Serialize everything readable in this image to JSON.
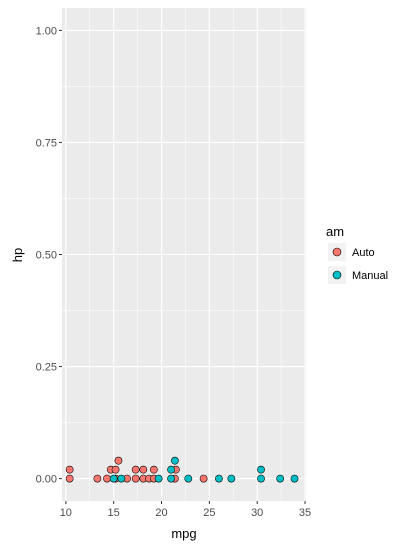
{
  "chart_data": {
    "type": "scatter",
    "xlabel": "mpg",
    "ylabel": "hp",
    "xlim": [
      9.6,
      35.1
    ],
    "ylim": [
      -0.05,
      1.05
    ],
    "xticks": [
      10,
      15,
      20,
      25,
      30,
      35
    ],
    "xtick_labels": [
      "10",
      "15",
      "20",
      "25",
      "30",
      "35"
    ],
    "yticks": [
      0,
      0.25,
      0.5,
      0.75,
      1.0
    ],
    "ytick_labels": [
      "0.00",
      "0.25",
      "0.50",
      "0.75",
      "1.00"
    ],
    "grid": true,
    "legend": {
      "title": "am",
      "placement": "right",
      "entries": [
        "Auto",
        "Manual"
      ]
    },
    "series": [
      {
        "name": "Auto",
        "color": "#F8766D",
        "points": [
          {
            "x": 10.4,
            "y": 0.0
          },
          {
            "x": 10.4,
            "y": 0.02
          },
          {
            "x": 13.3,
            "y": 0.0
          },
          {
            "x": 14.3,
            "y": 0.0
          },
          {
            "x": 14.7,
            "y": 0.02
          },
          {
            "x": 15.2,
            "y": 0.0
          },
          {
            "x": 15.2,
            "y": 0.02
          },
          {
            "x": 15.5,
            "y": 0.04
          },
          {
            "x": 16.4,
            "y": 0.0
          },
          {
            "x": 17.3,
            "y": 0.0
          },
          {
            "x": 17.3,
            "y": 0.02
          },
          {
            "x": 18.1,
            "y": 0.0
          },
          {
            "x": 18.1,
            "y": 0.02
          },
          {
            "x": 18.7,
            "y": 0.0
          },
          {
            "x": 19.2,
            "y": 0.0
          },
          {
            "x": 19.2,
            "y": 0.02
          },
          {
            "x": 21.4,
            "y": 0.0
          },
          {
            "x": 21.5,
            "y": 0.02
          },
          {
            "x": 24.4,
            "y": 0.0
          }
        ]
      },
      {
        "name": "Manual",
        "color": "#00BFC4",
        "points": [
          {
            "x": 15.0,
            "y": 0.0
          },
          {
            "x": 15.8,
            "y": 0.0
          },
          {
            "x": 19.7,
            "y": 0.0
          },
          {
            "x": 21.0,
            "y": 0.0
          },
          {
            "x": 21.0,
            "y": 0.02
          },
          {
            "x": 21.4,
            "y": 0.04
          },
          {
            "x": 22.8,
            "y": 0.0
          },
          {
            "x": 26.0,
            "y": 0.0
          },
          {
            "x": 27.3,
            "y": 0.0
          },
          {
            "x": 30.4,
            "y": 0.0
          },
          {
            "x": 30.4,
            "y": 0.02
          },
          {
            "x": 32.4,
            "y": 0.0
          },
          {
            "x": 33.9,
            "y": 0.0
          }
        ]
      }
    ]
  },
  "colors": {
    "panel_background": "#EBEBEB",
    "grid_major": "#FFFFFF",
    "point_outline": "#000000",
    "legend_key_background": "#F2F2F2"
  }
}
